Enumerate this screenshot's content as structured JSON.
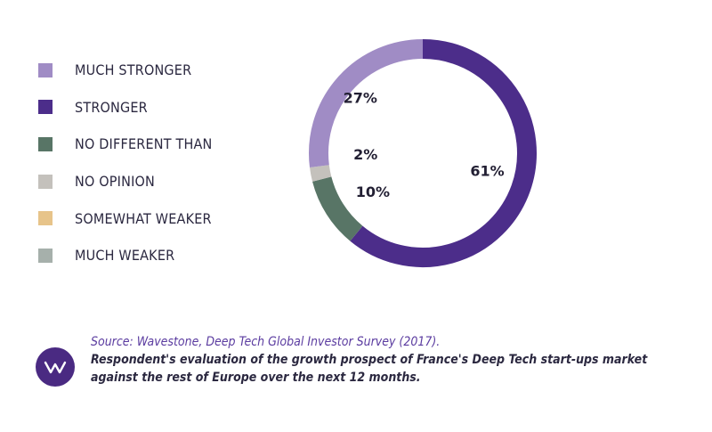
{
  "chart_data": {
    "type": "pie",
    "style": "donut",
    "title": "",
    "categories": [
      "MUCH STRONGER",
      "STRONGER",
      "NO DIFFERENT THAN",
      "NO OPINION",
      "SOMEWHAT WEAKER",
      "MUCH WEAKER"
    ],
    "values": [
      27,
      61,
      10,
      2,
      0,
      0
    ],
    "value_labels": [
      "27%",
      "61%",
      "10%",
      "2%",
      "",
      ""
    ],
    "colors": [
      "#a08cc5",
      "#4c2d8a",
      "#587566",
      "#c4c1bc",
      "#e7c48a",
      "#a6b0ab"
    ],
    "legend_position": "left"
  },
  "footer": {
    "source_prefix": "Source: ",
    "source_name": "Wavestone, Deep Tech Global Investor Survey (2017).",
    "caption": "Respondent's evaluation of the growth prospect of France's Deep Tech start-ups market against the rest of Europe over the next 12 months.",
    "logo_icon": "wavestone-w-logo"
  }
}
